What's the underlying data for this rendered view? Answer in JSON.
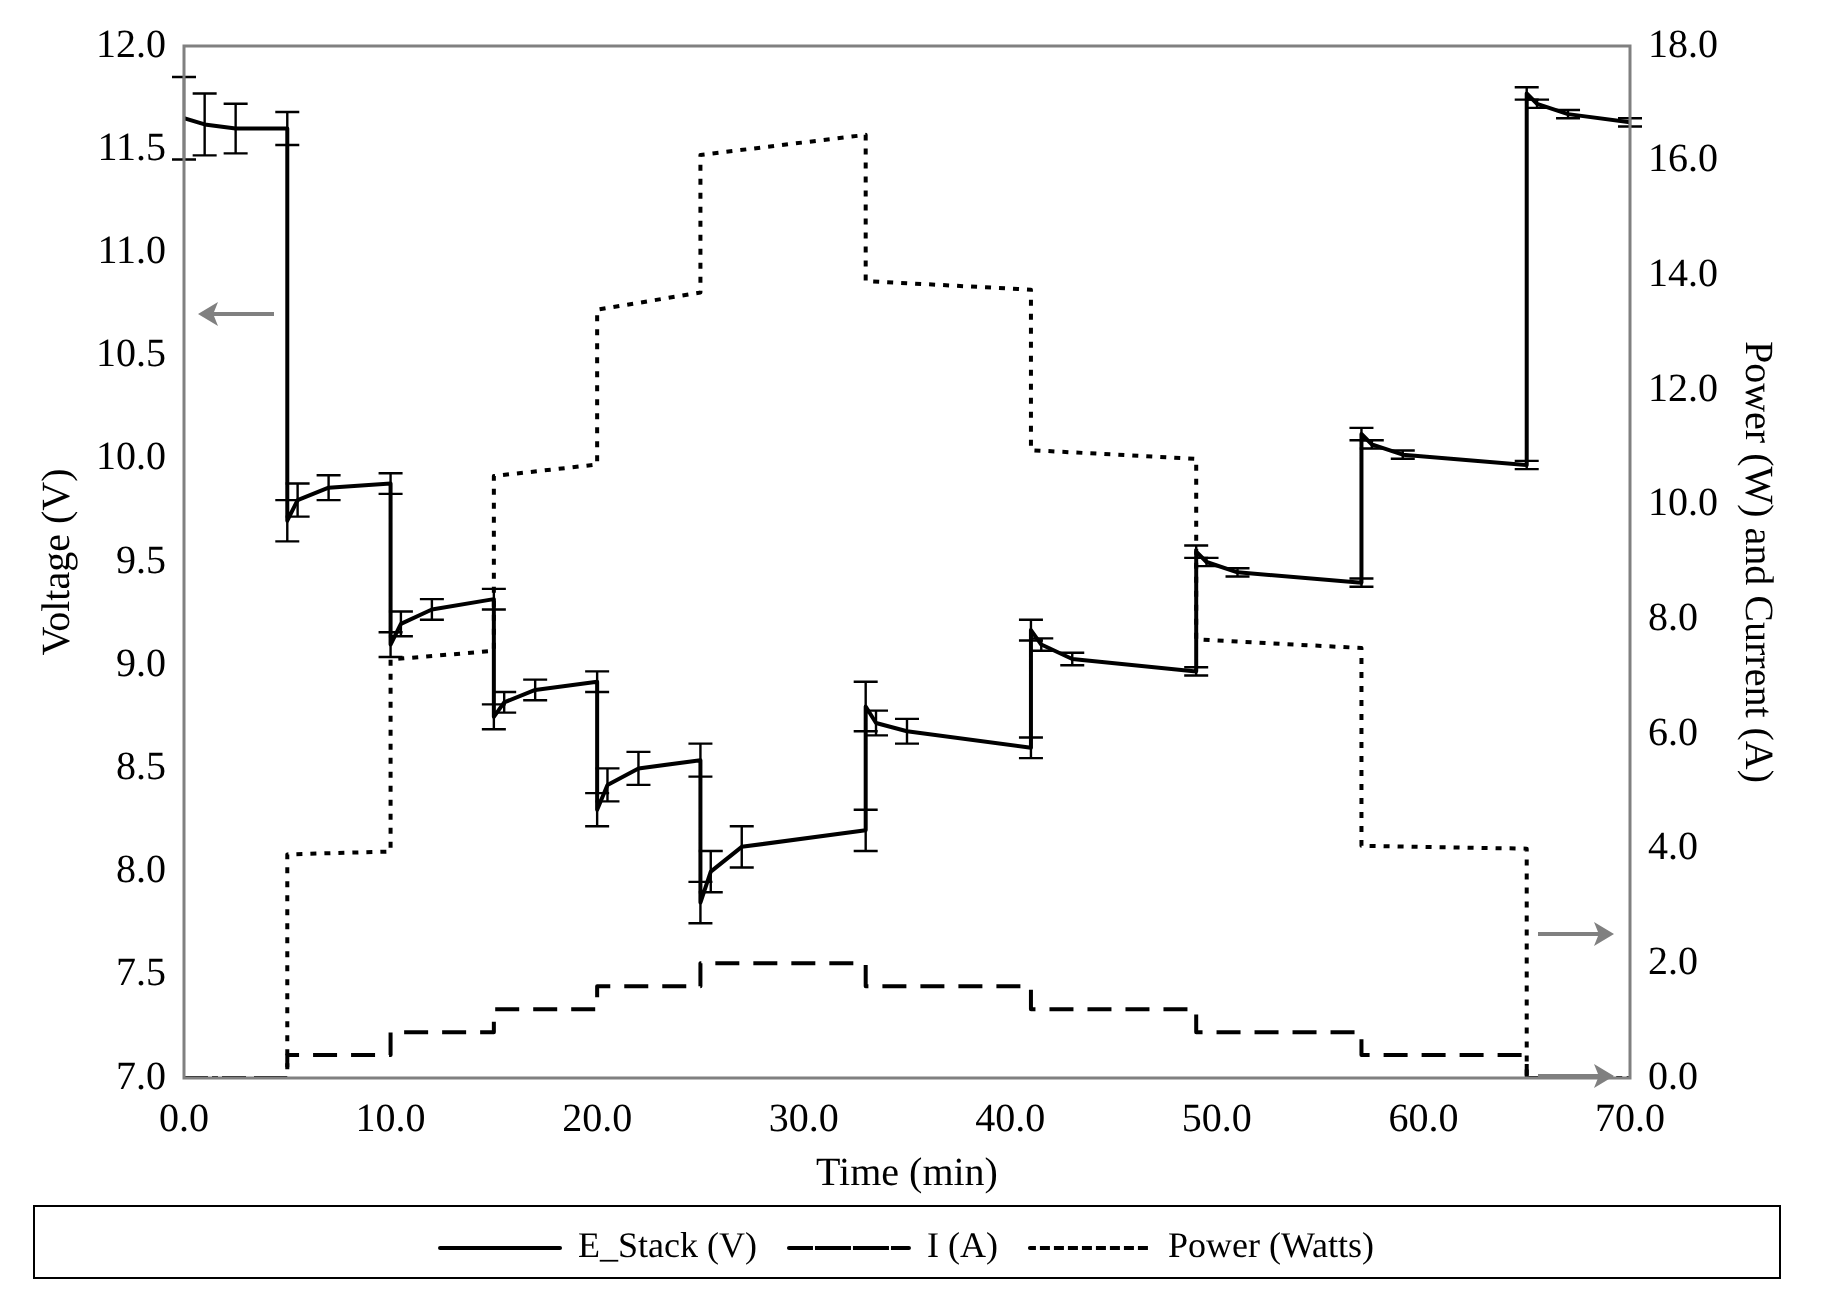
{
  "chart_data": {
    "type": "line",
    "xlabel": "Time (min)",
    "ylabel": "Voltage (V)",
    "y2label": "Power (W) and Current (A)",
    "xlim": [
      0,
      70
    ],
    "xticks": [
      {
        "value": 0,
        "label": "0.0"
      },
      {
        "value": 10,
        "label": "10.0"
      },
      {
        "value": 20,
        "label": "20.0"
      },
      {
        "value": 30,
        "label": "30.0"
      },
      {
        "value": 40,
        "label": "40.0"
      },
      {
        "value": 50,
        "label": "50.0"
      },
      {
        "value": 60,
        "label": "60.0"
      },
      {
        "value": 70,
        "label": "70.0"
      }
    ],
    "ylim": [
      7,
      12
    ],
    "yticks": [
      {
        "value": 7,
        "label": "7.0"
      },
      {
        "value": 7.5,
        "label": "7.5"
      },
      {
        "value": 8,
        "label": "8.0"
      },
      {
        "value": 8.5,
        "label": "8.5"
      },
      {
        "value": 9,
        "label": "9.0"
      },
      {
        "value": 9.5,
        "label": "9.5"
      },
      {
        "value": 10,
        "label": "10.0"
      },
      {
        "value": 10.5,
        "label": "10.5"
      },
      {
        "value": 11,
        "label": "11.0"
      },
      {
        "value": 11.5,
        "label": "11.5"
      },
      {
        "value": 12,
        "label": "12.0"
      }
    ],
    "y2lim": [
      0,
      18
    ],
    "y2ticks": [
      {
        "value": 0,
        "label": "0.0"
      },
      {
        "value": 2,
        "label": "2.0"
      },
      {
        "value": 4,
        "label": "4.0"
      },
      {
        "value": 6,
        "label": "6.0"
      },
      {
        "value": 8,
        "label": "8.0"
      },
      {
        "value": 10,
        "label": "10.0"
      },
      {
        "value": 12,
        "label": "12.0"
      },
      {
        "value": 14,
        "label": "14.0"
      },
      {
        "value": 16,
        "label": "16.0"
      },
      {
        "value": 18,
        "label": "18.0"
      }
    ],
    "grid": false,
    "legend": "bottom",
    "marker": "none",
    "series": [
      {
        "name": "E_Stack (V)",
        "color": "#000000",
        "line_style": "solid",
        "x": [
          0,
          1,
          2.5,
          5,
          5,
          5.5,
          7,
          10,
          10,
          10.5,
          12,
          15,
          15,
          15.5,
          17,
          20,
          20,
          20.5,
          22,
          25,
          25,
          25.5,
          27,
          33,
          33,
          33.5,
          35,
          41,
          41,
          41.5,
          43,
          49,
          49,
          49.5,
          51,
          57,
          57,
          57.5,
          59,
          65,
          65,
          65.5,
          67,
          70
        ],
        "values": [
          11.65,
          11.62,
          11.6,
          11.6,
          9.7,
          9.8,
          9.86,
          9.88,
          9.1,
          9.2,
          9.27,
          9.32,
          8.75,
          8.82,
          8.88,
          8.92,
          8.3,
          8.42,
          8.5,
          8.54,
          7.85,
          8,
          8.12,
          8.2,
          8.8,
          8.72,
          8.68,
          8.6,
          9.17,
          9.1,
          9.03,
          8.97,
          9.55,
          9.5,
          9.45,
          9.4,
          10.12,
          10.07,
          10.02,
          9.97,
          11.77,
          11.72,
          11.67,
          11.63
        ],
        "errors": [
          0.2,
          0.15,
          0.12,
          0.08,
          0.1,
          0.08,
          0.06,
          0.05,
          0.06,
          0.06,
          0.05,
          0.05,
          0.06,
          0.05,
          0.05,
          0.05,
          0.08,
          0.08,
          0.08,
          0.08,
          0.1,
          0.1,
          0.1,
          0.1,
          0.12,
          0.06,
          0.06,
          0.05,
          0.05,
          0.03,
          0.03,
          0.02,
          0.03,
          0.02,
          0.02,
          0.02,
          0.03,
          0.02,
          0.02,
          0.02,
          0.03,
          0.02,
          0.02,
          0.02
        ]
      },
      {
        "name": "I (A)",
        "color": "#000000",
        "line_style": "dashed",
        "axis": "y2",
        "x": [
          0,
          5,
          5,
          10,
          10,
          15,
          15,
          20,
          20,
          25,
          25,
          33,
          33,
          41,
          41,
          49,
          49,
          57,
          57,
          65,
          65,
          70
        ],
        "values": [
          0,
          0,
          0.4,
          0.4,
          0.8,
          0.8,
          1.2,
          1.2,
          1.6,
          1.6,
          2,
          2,
          1.6,
          1.6,
          1.2,
          1.2,
          0.8,
          0.8,
          0.4,
          0.4,
          0,
          0
        ]
      },
      {
        "name": "Power (Watts)",
        "color": "#000000",
        "line_style": "dotted",
        "axis": "y2",
        "x": [
          0,
          5,
          5,
          10,
          10,
          15,
          15,
          20,
          20,
          25,
          25,
          33,
          33,
          41,
          41,
          49,
          49,
          57,
          57,
          65,
          65,
          70
        ],
        "values": [
          0,
          0,
          3.9,
          3.95,
          7.3,
          7.45,
          10.5,
          10.7,
          13.4,
          13.7,
          16.1,
          16.45,
          13.9,
          13.75,
          10.95,
          10.8,
          7.65,
          7.5,
          4.05,
          4,
          0,
          0
        ]
      }
    ]
  }
}
